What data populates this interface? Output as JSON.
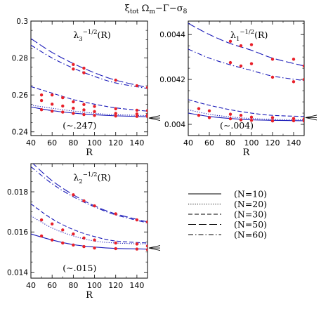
{
  "figure_title": {
    "main": "ξ",
    "sub": "tot",
    "rest": " Ω",
    "rest_sub": "m",
    "tail": "−Γ−σ",
    "tail_sub": "8"
  },
  "colors": {
    "curve": "#1a1ab8",
    "point": "#e8202a",
    "axis": "#000000"
  },
  "legend": {
    "items": [
      {
        "label": "(N=10)",
        "style": "solid"
      },
      {
        "label": "(N=20)",
        "style": "dotted"
      },
      {
        "label": "(N=30)",
        "style": "dashed"
      },
      {
        "label": "(N=50)",
        "style": "longdash"
      },
      {
        "label": "(N=60)",
        "style": "dashdot"
      }
    ]
  },
  "chart_data": [
    {
      "type": "line",
      "panel_label": "λ3−1/2(R)",
      "label_base": "λ",
      "label_sub": "3",
      "label_sup": "−1/2",
      "label_arg": "(R)",
      "annotation": "(∼.247)",
      "arrow_value": 0.2475,
      "xlabel": "R",
      "ylabel": "",
      "xlim": [
        40,
        150
      ],
      "ylim": [
        0.238,
        0.3
      ],
      "xticks": [
        40,
        60,
        80,
        100,
        120,
        140
      ],
      "yticks": [
        0.24,
        0.26,
        0.28,
        0.3
      ],
      "ytick_labels": [
        "0.24",
        "0.26",
        "0.28",
        "0.3"
      ],
      "series": [
        {
          "style": "solid",
          "x": [
            40,
            60,
            80,
            100,
            120,
            150
          ],
          "y": [
            0.2535,
            0.2515,
            0.2502,
            0.2493,
            0.2487,
            0.2482
          ]
        },
        {
          "style": "dotted",
          "x": [
            40,
            60,
            80,
            100,
            120,
            150
          ],
          "y": [
            0.2545,
            0.2528,
            0.2513,
            0.2501,
            0.2493,
            0.2488
          ]
        },
        {
          "style": "dashed",
          "x": [
            40,
            60,
            80,
            100,
            120,
            150
          ],
          "y": [
            0.2645,
            0.261,
            0.2575,
            0.255,
            0.253,
            0.2512
          ]
        },
        {
          "style": "longdash",
          "x": [
            40,
            60,
            80,
            100,
            120,
            150
          ],
          "y": [
            0.2905,
            0.283,
            0.277,
            0.272,
            0.268,
            0.264
          ]
        },
        {
          "style": "dashdot",
          "x": [
            40,
            60,
            80,
            100,
            120,
            150
          ],
          "y": [
            0.287,
            0.28,
            0.2745,
            0.27,
            0.2665,
            0.2635
          ]
        }
      ],
      "points": {
        "x": [
          50,
          60,
          70,
          80,
          90,
          100,
          120,
          140,
          150,
          50,
          60,
          70,
          80,
          90,
          100,
          120,
          140,
          150,
          50,
          60,
          70,
          80,
          90,
          100,
          120,
          140,
          150,
          80,
          90,
          120,
          140,
          150,
          80,
          90
        ],
        "y": [
          0.252,
          0.2512,
          0.2507,
          0.25,
          0.2494,
          0.2489,
          0.2486,
          0.2484,
          0.2483,
          0.257,
          0.255,
          0.254,
          0.2528,
          0.2519,
          0.251,
          0.25,
          0.2497,
          0.2492,
          0.26,
          0.26,
          0.2585,
          0.2563,
          0.2548,
          0.2538,
          0.2525,
          0.2517,
          0.2515,
          0.2765,
          0.2745,
          0.268,
          0.265,
          0.264,
          0.274,
          0.272
        ]
      }
    },
    {
      "type": "line",
      "panel_label": "λ1−1/2(R)",
      "label_base": "λ",
      "label_sub": "1",
      "label_sup": "−1/2",
      "label_arg": "(R)",
      "annotation": "(∼.004)",
      "arrow_value": 0.00403,
      "xlabel": "R",
      "ylabel": "",
      "xlim": [
        40,
        150
      ],
      "ylim": [
        0.00395,
        0.00446
      ],
      "xticks": [
        40,
        60,
        80,
        100,
        120,
        140
      ],
      "yticks": [
        0.004,
        0.0042,
        0.0044
      ],
      "ytick_labels": [
        "0.004",
        "0.0042",
        "0.0044"
      ],
      "series": [
        {
          "style": "solid",
          "x": [
            40,
            60,
            80,
            100,
            120,
            150
          ],
          "y": [
            0.00405,
            0.004035,
            0.004026,
            0.00402,
            0.004018,
            0.004016
          ]
        },
        {
          "style": "dotted",
          "x": [
            40,
            60,
            80,
            100,
            120,
            150
          ],
          "y": [
            0.004065,
            0.004045,
            0.004033,
            0.004026,
            0.004022,
            0.00402
          ]
        },
        {
          "style": "dashed",
          "x": [
            40,
            60,
            80,
            100,
            120,
            150
          ],
          "y": [
            0.00411,
            0.004085,
            0.004065,
            0.00405,
            0.00404,
            0.004035
          ]
        },
        {
          "style": "longdash",
          "x": [
            40,
            60,
            80,
            100,
            120,
            150
          ],
          "y": [
            0.00445,
            0.0044,
            0.00436,
            0.00433,
            0.004295,
            0.00426
          ]
        },
        {
          "style": "dashdot",
          "x": [
            40,
            60,
            80,
            100,
            120,
            150
          ],
          "y": [
            0.004335,
            0.004295,
            0.004265,
            0.00424,
            0.004215,
            0.004195
          ]
        }
      ],
      "points": {
        "x": [
          50,
          60,
          80,
          90,
          100,
          120,
          140,
          150,
          50,
          60,
          80,
          90,
          100,
          120,
          140,
          150,
          80,
          90,
          100,
          120,
          140,
          150,
          80,
          90,
          100,
          120,
          140,
          150
        ],
        "y": [
          0.00404,
          0.00403,
          0.004025,
          0.00402,
          0.004018,
          0.004015,
          0.004016,
          0.004015,
          0.00407,
          0.00406,
          0.004045,
          0.00404,
          0.004032,
          0.00403,
          0.004026,
          0.004024,
          0.00437,
          0.00435,
          0.004355,
          0.00429,
          0.00429,
          0.00426,
          0.004275,
          0.00426,
          0.00427,
          0.00421,
          0.00419,
          0.0042
        ]
      }
    },
    {
      "type": "line",
      "panel_label": "λ2−1/2(R)",
      "label_base": "λ",
      "label_sub": "2",
      "label_sup": "−1/2",
      "label_arg": "(R)",
      "annotation": "(∼.015)",
      "arrow_value": 0.0152,
      "xlabel": "R",
      "ylabel": "",
      "xlim": [
        40,
        150
      ],
      "ylim": [
        0.0137,
        0.0194
      ],
      "xticks": [
        40,
        60,
        80,
        100,
        120,
        140
      ],
      "yticks": [
        0.014,
        0.016,
        0.018
      ],
      "ytick_labels": [
        "0.014",
        "0.016",
        "0.018"
      ],
      "series": [
        {
          "style": "solid",
          "x": [
            40,
            60,
            80,
            100,
            120,
            150
          ],
          "y": [
            0.0159,
            0.0156,
            0.01537,
            0.01525,
            0.01518,
            0.01515
          ]
        },
        {
          "style": "dotted",
          "x": [
            40,
            60,
            80,
            100,
            120,
            150
          ],
          "y": [
            0.0168,
            0.0162,
            0.0158,
            0.01555,
            0.01545,
            0.0154
          ]
        },
        {
          "style": "dashed",
          "x": [
            40,
            60,
            80,
            100,
            120,
            150
          ],
          "y": [
            0.0174,
            0.01665,
            0.01612,
            0.01577,
            0.01555,
            0.01545
          ]
        },
        {
          "style": "longdash",
          "x": [
            40,
            60,
            80,
            100,
            120,
            150
          ],
          "y": [
            0.0195,
            0.01855,
            0.01785,
            0.0173,
            0.0169,
            0.0165
          ]
        },
        {
          "style": "dashdot",
          "x": [
            40,
            60,
            80,
            100,
            120,
            150
          ],
          "y": [
            0.01925,
            0.0184,
            0.01775,
            0.01725,
            0.01685,
            0.01645
          ]
        }
      ],
      "points": {
        "x": [
          50,
          60,
          70,
          80,
          90,
          100,
          120,
          140,
          150,
          50,
          60,
          70,
          80,
          90,
          100,
          120,
          140,
          150,
          80,
          90,
          100,
          120,
          140,
          150
        ],
        "y": [
          0.0158,
          0.0156,
          0.01545,
          0.01535,
          0.01527,
          0.0152,
          0.01517,
          0.01515,
          0.01512,
          0.0166,
          0.0164,
          0.0161,
          0.0159,
          0.0157,
          0.0156,
          0.01545,
          0.0154,
          0.0153,
          0.01785,
          0.01755,
          0.0173,
          0.0169,
          0.0166,
          0.0165
        ]
      }
    }
  ]
}
